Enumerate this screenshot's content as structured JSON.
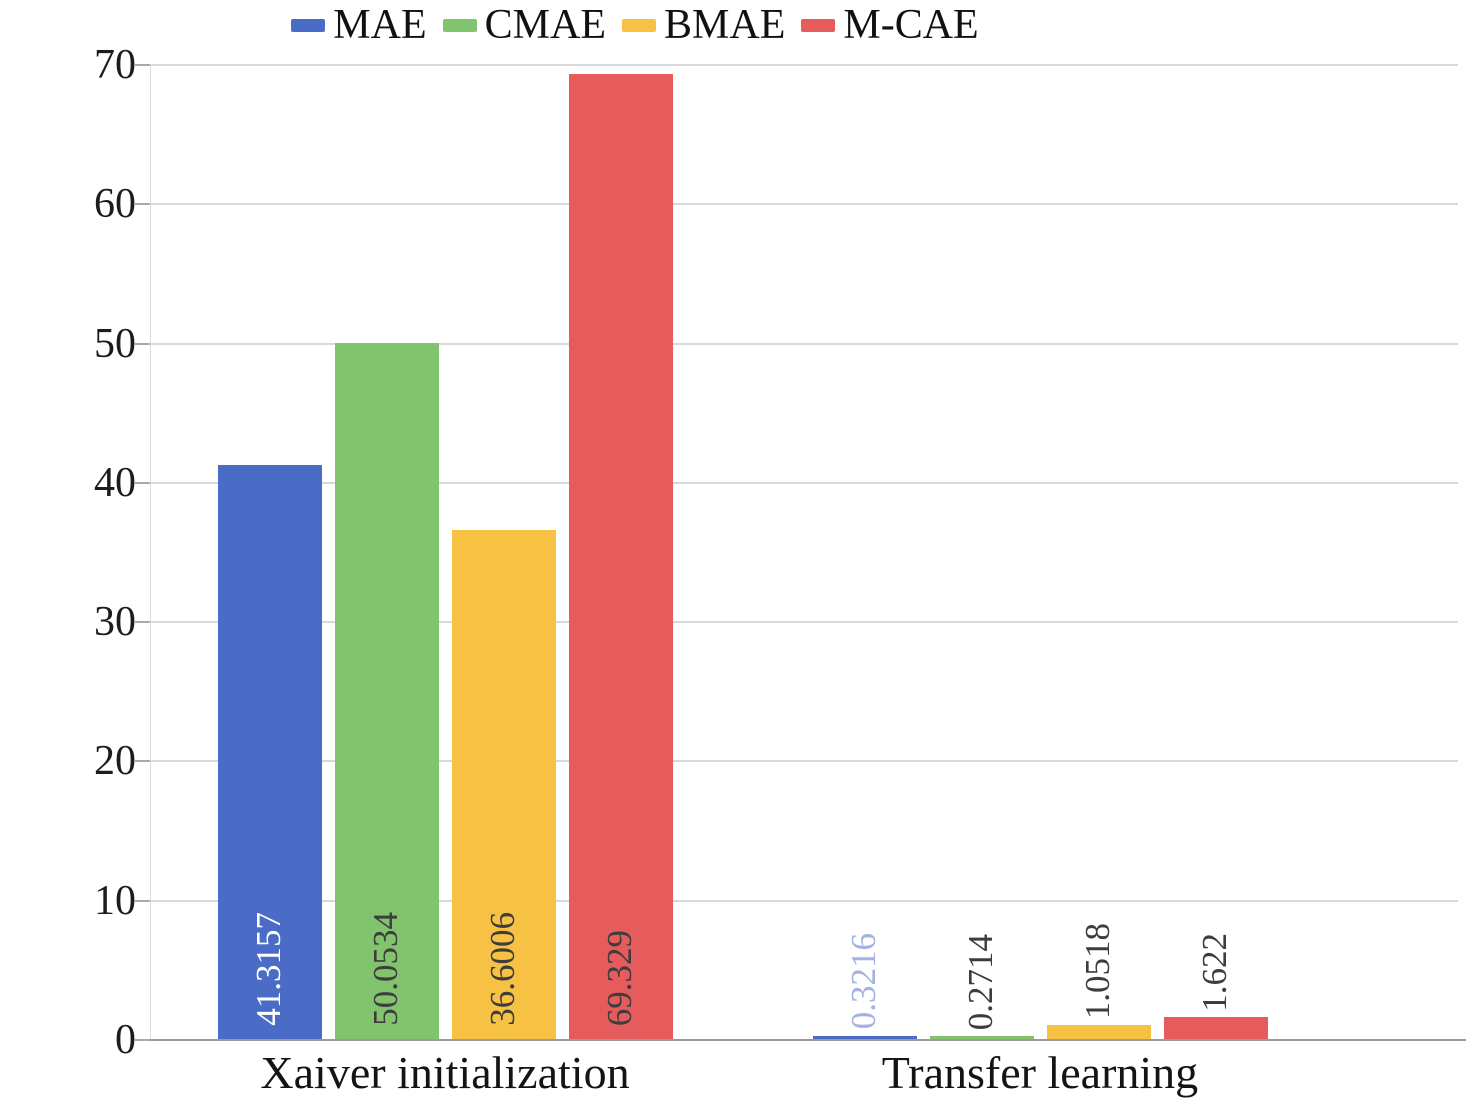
{
  "chart_data": {
    "type": "bar",
    "title": "",
    "categories": [
      "Xaiver initialization",
      "Transfer learning"
    ],
    "series": [
      {
        "name": "MAE",
        "color": "#4a6cc7",
        "values": [
          41.3157,
          0.3216
        ],
        "label_colors": [
          "#ffffff",
          "#a3b2e2"
        ]
      },
      {
        "name": "CMAE",
        "color": "#82c36d",
        "values": [
          50.0534,
          0.2714
        ],
        "label_colors": [
          "#3d3d3d",
          "#3d3d3d"
        ]
      },
      {
        "name": "BMAE",
        "color": "#f7c244",
        "values": [
          36.6006,
          1.0518
        ],
        "label_colors": [
          "#3d3d3d",
          "#3d3d3d"
        ]
      },
      {
        "name": "M-CAE",
        "color": "#e65c5c",
        "values": [
          69.329,
          1.622
        ],
        "label_colors": [
          "#3d3d3d",
          "#3d3d3d"
        ]
      }
    ],
    "value_labels": [
      [
        "41.3157",
        "50.0534",
        "36.6006",
        "69.329"
      ],
      [
        "0.3216",
        "0.2714",
        "1.0518",
        "1.622"
      ]
    ],
    "y_ticks": [
      0,
      10,
      20,
      30,
      40,
      50,
      60,
      70
    ],
    "ylim": [
      0,
      70
    ],
    "grid": true,
    "legend_position": "top"
  }
}
